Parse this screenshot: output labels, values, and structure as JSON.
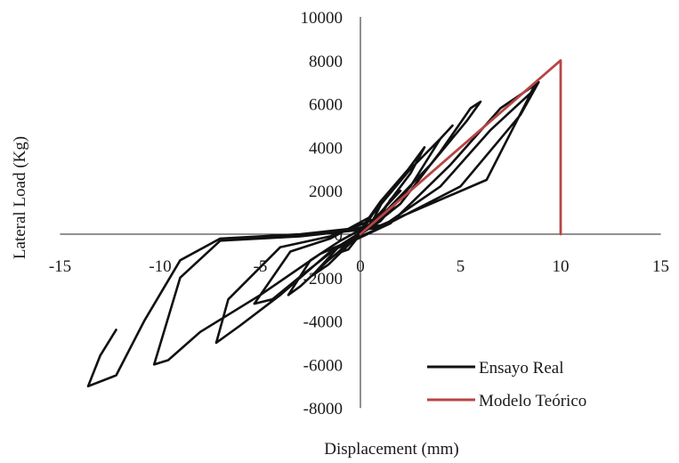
{
  "chart_data": {
    "type": "line",
    "title": "",
    "xlabel": "Displacement (mm)",
    "ylabel": "Lateral Load (Kg)",
    "xlim": [
      -15,
      15
    ],
    "ylim": [
      -8000,
      10000
    ],
    "x_ticks": [
      "-15",
      "-10",
      "-5",
      "0",
      "5",
      "10",
      "15"
    ],
    "y_ticks": [
      "-8000",
      "-6000",
      "-4000",
      "-2000",
      "0",
      "2000",
      "4000",
      "6000",
      "8000",
      "10000"
    ],
    "grid": false,
    "legend_position": "bottom-right",
    "series": [
      {
        "name": "Ensayo Real",
        "color": "#111111",
        "x": [
          0,
          0.6,
          1.1,
          0.6,
          0,
          -0.6,
          -1.2,
          -0.6,
          0,
          0.9,
          1.5,
          2.0,
          1.2,
          0.3,
          -0.3,
          -1.0,
          -1.8,
          -2.4,
          -1.6,
          -0.6,
          0.1,
          0.5,
          1.2,
          2.5,
          3.2,
          2.4,
          1.0,
          0,
          -1.0,
          -2.5,
          -3.6,
          -3.0,
          -1.6,
          0,
          1.0,
          2.5,
          4.0,
          4.6,
          4.0,
          2.5,
          0.5,
          -1.5,
          -3.5,
          -5.3,
          -4.4,
          -2.8,
          -1.0,
          0.5,
          2.0,
          4.0,
          5.5,
          6.0,
          5.3,
          3.5,
          1.0,
          -1.5,
          -4.0,
          -6.6,
          -7.2,
          -6.0,
          -4.0,
          -1.5,
          1.5,
          4.5,
          7.0,
          8.6,
          8.9,
          8.0,
          5.0,
          1.0,
          -3.0,
          -7.0,
          -9.0,
          -10.3,
          -9.6,
          -8.0,
          -5.0,
          -2.0,
          1.0,
          4.0,
          6.5,
          8.5,
          8.8,
          6.3,
          1.0,
          -3.0,
          -7.0,
          -9.0,
          -10.8,
          -12.2,
          -13.6,
          -13.0,
          -12.2
        ],
        "y": [
          0,
          600,
          1500,
          900,
          0,
          -400,
          -900,
          -700,
          0,
          700,
          1600,
          2000,
          1200,
          300,
          -100,
          -500,
          -1300,
          -1900,
          -1400,
          -500,
          100,
          400,
          1200,
          2800,
          4000,
          3000,
          1500,
          200,
          -300,
          -1200,
          -2800,
          -2400,
          -1200,
          0,
          600,
          2200,
          4400,
          5000,
          4400,
          3000,
          800,
          -200,
          -800,
          -3200,
          -3000,
          -1800,
          -500,
          300,
          1400,
          3800,
          5800,
          6100,
          5200,
          3200,
          800,
          -100,
          -600,
          -3000,
          -5000,
          -4200,
          -2800,
          -800,
          500,
          3200,
          5800,
          6800,
          7000,
          5500,
          2200,
          300,
          -100,
          -300,
          -2000,
          -6000,
          -5800,
          -4500,
          -2800,
          -900,
          300,
          2200,
          4800,
          6500,
          7000,
          2500,
          400,
          0,
          -200,
          -1200,
          -4000,
          -6500,
          -7000,
          -5600,
          -4400
        ]
      },
      {
        "name": "Modelo Teórico",
        "color": "#b84444",
        "x": [
          0,
          10,
          10
        ],
        "y": [
          0,
          8000,
          0
        ]
      }
    ],
    "annotations": []
  },
  "legend": {
    "items": [
      {
        "label": "Ensayo Real",
        "color": "#111111"
      },
      {
        "label": "Modelo Teórico",
        "color": "#b84444"
      }
    ]
  }
}
